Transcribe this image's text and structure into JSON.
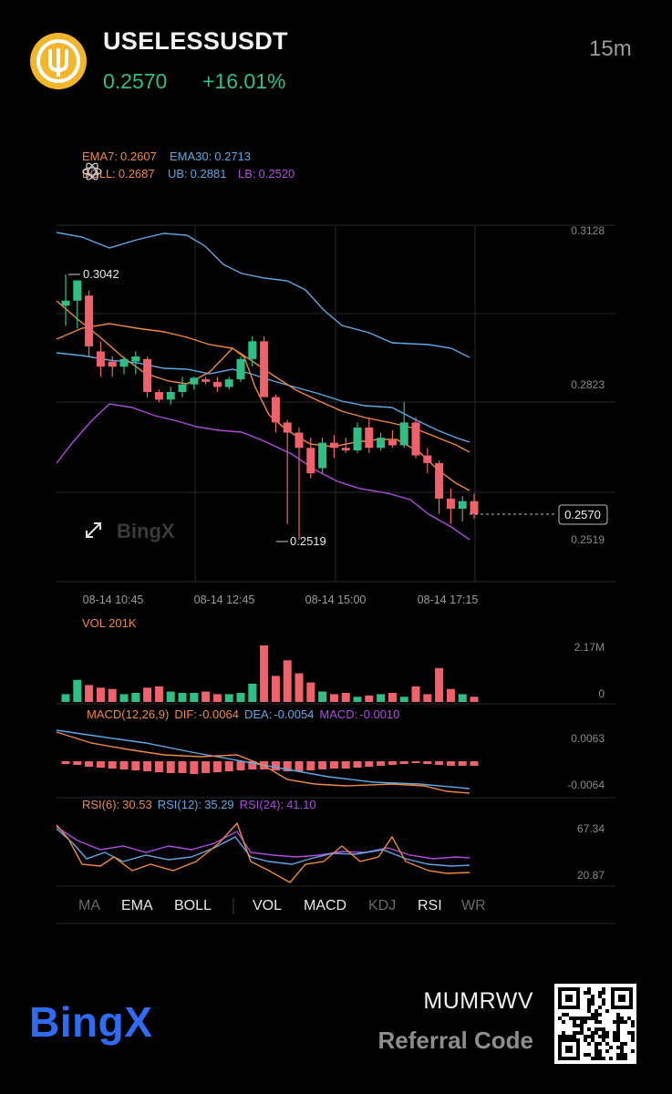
{
  "header": {
    "symbol": "USELESSUSDT",
    "price": "0.2570",
    "change": "+16.01%",
    "timeframe": "15m"
  },
  "overlay": {
    "ema7_label": "EMA7:",
    "ema7_value": "0.2607",
    "ema30_label": "EMA30:",
    "ema30_value": "0.2713",
    "boll_label": "BOLL:",
    "boll_value": "0.2687",
    "ub_label": "UB:",
    "ub_value": "0.2881",
    "lb_label": "LB:",
    "lb_value": "0.2520"
  },
  "price_axis": [
    "0.3128",
    "0.2823",
    "0.2519"
  ],
  "current_price_tag": "0.2570",
  "high_marker": "0.3042",
  "low_marker": "0.2519",
  "watermark": "BingX",
  "time_axis": [
    "08-14 10:45",
    "08-14 12:45",
    "08-14 15:00",
    "08-14 17:15"
  ],
  "volume": {
    "label": "VOL 201K",
    "max_tick": "2.17M",
    "min_tick": "0"
  },
  "macd": {
    "label": "MACD(12,26,9)",
    "dif_label": "DIF:",
    "dif_value": "-0.0064",
    "dea_label": "DEA:",
    "dea_value": "-0.0054",
    "macd_label": "MACD:",
    "macd_value": "-0.0010",
    "top_tick": "0.0063",
    "bottom_tick": "-0.0064"
  },
  "rsi": {
    "rsi6_label": "RSI(6):",
    "rsi6_value": "30.53",
    "rsi12_label": "RSI(12):",
    "rsi12_value": "35.29",
    "rsi24_label": "RSI(24):",
    "rsi24_value": "41.10",
    "top_tick": "67.34",
    "bottom_tick": "20.87"
  },
  "indicator_tabs": [
    {
      "label": "MA",
      "active": false
    },
    {
      "label": "EMA",
      "active": true
    },
    {
      "label": "BOLL",
      "active": true
    },
    {
      "label": "VOL",
      "active": true
    },
    {
      "label": "MACD",
      "active": true
    },
    {
      "label": "KDJ",
      "active": false
    },
    {
      "label": "RSI",
      "active": true
    },
    {
      "label": "WR",
      "active": false
    }
  ],
  "footer": {
    "brand": "BingX",
    "referral_code": "MUMRWV",
    "referral_label": "Referral Code"
  },
  "colors": {
    "up": "#2fbf84",
    "down": "#f0626b",
    "ema7": "#f0883e",
    "ema30": "#5aa9e6",
    "lb": "#b04be0",
    "brand": "#2f6cf6"
  },
  "chart_data": {
    "type": "candlestick",
    "candles": [
      [
        0.298,
        0.3042,
        0.294,
        0.299
      ],
      [
        0.299,
        0.303,
        0.2935,
        0.303
      ],
      [
        0.3,
        0.301,
        0.288,
        0.29
      ],
      [
        0.289,
        0.291,
        0.284,
        0.286
      ],
      [
        0.287,
        0.288,
        0.284,
        0.286
      ],
      [
        0.286,
        0.288,
        0.2845,
        0.2875
      ],
      [
        0.287,
        0.289,
        0.2845,
        0.288
      ],
      [
        0.2875,
        0.288,
        0.28,
        0.281
      ],
      [
        0.281,
        0.2815,
        0.279,
        0.2795
      ],
      [
        0.2795,
        0.282,
        0.2785,
        0.281
      ],
      [
        0.281,
        0.284,
        0.28,
        0.2825
      ],
      [
        0.2825,
        0.284,
        0.2815,
        0.2838
      ],
      [
        0.2835,
        0.284,
        0.2825,
        0.283
      ],
      [
        0.283,
        0.284,
        0.281,
        0.282
      ],
      [
        0.282,
        0.284,
        0.2815,
        0.2835
      ],
      [
        0.2835,
        0.288,
        0.283,
        0.2875
      ],
      [
        0.2875,
        0.292,
        0.286,
        0.291
      ],
      [
        0.291,
        0.292,
        0.28,
        0.28
      ],
      [
        0.28,
        0.2805,
        0.273,
        0.275
      ],
      [
        0.275,
        0.2755,
        0.255,
        0.273
      ],
      [
        0.273,
        0.274,
        0.2519,
        0.27
      ],
      [
        0.27,
        0.272,
        0.264,
        0.265
      ],
      [
        0.266,
        0.272,
        0.265,
        0.271
      ],
      [
        0.271,
        0.2725,
        0.268,
        0.27
      ],
      [
        0.27,
        0.272,
        0.269,
        0.2695
      ],
      [
        0.2695,
        0.275,
        0.269,
        0.274
      ],
      [
        0.274,
        0.276,
        0.269,
        0.27
      ],
      [
        0.27,
        0.273,
        0.2695,
        0.272
      ],
      [
        0.2715,
        0.2735,
        0.27,
        0.2705
      ],
      [
        0.2705,
        0.279,
        0.27,
        0.275
      ],
      [
        0.275,
        0.276,
        0.268,
        0.2685
      ],
      [
        0.2685,
        0.27,
        0.265,
        0.267
      ],
      [
        0.267,
        0.2675,
        0.257,
        0.26
      ],
      [
        0.26,
        0.262,
        0.255,
        0.258
      ],
      [
        0.258,
        0.2605,
        0.2555,
        0.2595
      ],
      [
        0.2595,
        0.261,
        0.256,
        0.257
      ]
    ],
    "volume": [
      0.3,
      0.85,
      0.65,
      0.55,
      0.5,
      0.3,
      0.35,
      0.55,
      0.6,
      0.4,
      0.35,
      0.35,
      0.4,
      0.3,
      0.3,
      0.35,
      0.7,
      2.17,
      1.0,
      1.6,
      1.1,
      0.75,
      0.4,
      0.3,
      0.35,
      0.2,
      0.25,
      0.3,
      0.35,
      0.2,
      0.6,
      0.3,
      1.3,
      0.5,
      0.3,
      0.2
    ],
    "ylim": [
      0.25,
      0.317
    ],
    "x_ticks": [
      "08-14 10:45",
      "08-14 12:45",
      "08-14 15:00",
      "08-14 17:15"
    ]
  }
}
